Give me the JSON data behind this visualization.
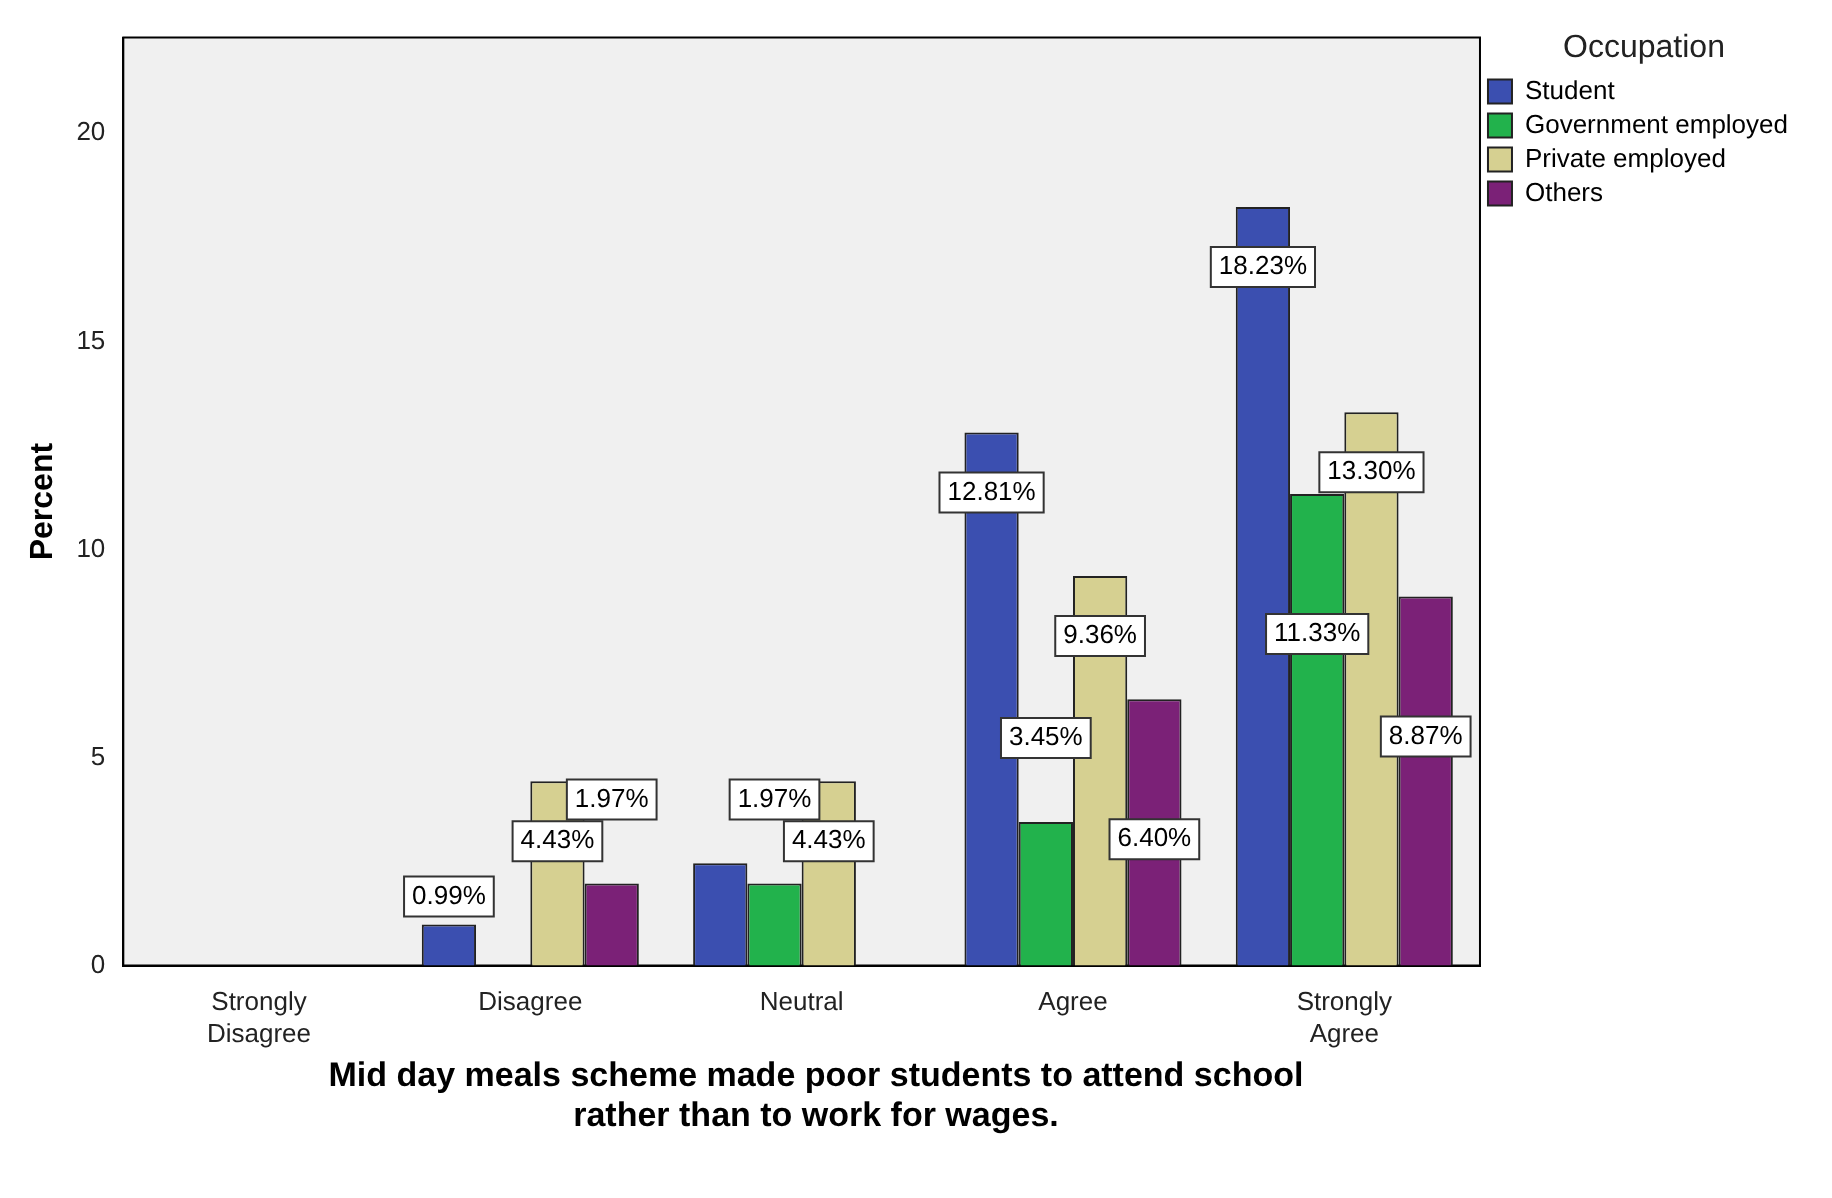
{
  "chart_data": {
    "type": "bar",
    "xlabel": "Mid day meals scheme made poor students to attend school rather than to work for wages.",
    "ylabel": "Percent",
    "legend_title": "Occupation",
    "legend": "top right",
    "categories": [
      "Strongly Disagree",
      "Disagree",
      "Neutral",
      "Agree",
      "Strongly Agree"
    ],
    "series": [
      {
        "name": "Student",
        "color": "#3b4fb0",
        "values": [
          null,
          0.99,
          2.46,
          12.81,
          18.23
        ],
        "value_labels": [
          null,
          "0.99%",
          null,
          "12.81%",
          "18.23%"
        ]
      },
      {
        "name": "Government employed",
        "color": "#22b24c",
        "values": [
          null,
          null,
          1.97,
          3.45,
          11.33
        ],
        "value_labels": [
          null,
          null,
          "1.97%",
          "3.45%",
          "11.33%"
        ]
      },
      {
        "name": "Private employed",
        "color": "#d6d091",
        "values": [
          null,
          4.43,
          4.43,
          9.36,
          13.3
        ],
        "value_labels": [
          null,
          "4.43%",
          "4.43%",
          "9.36%",
          "13.30%"
        ]
      },
      {
        "name": "Others",
        "color": "#7b2177",
        "values": [
          null,
          1.97,
          null,
          6.4,
          8.87
        ],
        "value_labels": [
          null,
          "1.97%",
          null,
          "6.40%",
          "8.87%"
        ]
      }
    ],
    "ylim": [
      0,
      22.3
    ],
    "yticks": [
      0,
      5,
      10,
      15,
      20
    ],
    "grid": false
  }
}
